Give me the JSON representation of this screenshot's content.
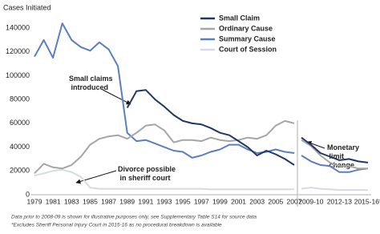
{
  "chart_data": [
    {
      "type": "line",
      "y_label": "Cases Initiated",
      "legend": "top-right",
      "annotations": [
        "Small claims introduced",
        "Divorce possible in sheriff court"
      ],
      "categories": [
        "1979",
        null,
        "1981",
        null,
        "1983",
        null,
        "1985",
        null,
        "1987",
        null,
        "1989",
        null,
        "1991",
        null,
        "1993",
        null,
        "1995",
        null,
        "1997",
        null,
        "1999",
        null,
        "2001",
        null,
        "2003",
        null,
        "2005",
        null,
        "2007"
      ],
      "ylim": [
        0,
        150000
      ],
      "yticks": [
        0,
        20000,
        40000,
        60000,
        80000,
        100000,
        120000,
        140000
      ],
      "series": [
        {
          "name": "Small Claim",
          "color": "#1f3864",
          "values": [
            null,
            null,
            null,
            null,
            null,
            null,
            null,
            null,
            null,
            null,
            73000,
            87000,
            88000,
            80000,
            74000,
            67000,
            62000,
            60000,
            59000,
            56000,
            52000,
            50000,
            45000,
            40000,
            33000,
            37000,
            34000,
            30000,
            25000
          ]
        },
        {
          "name": "Ordinary Cause",
          "color": "#a6a6a6",
          "values": [
            18000,
            26000,
            23000,
            22000,
            25000,
            32000,
            42000,
            47000,
            49000,
            50000,
            47000,
            52000,
            58000,
            59000,
            54000,
            44000,
            46000,
            46000,
            45000,
            48000,
            46000,
            45000,
            46000,
            48000,
            47000,
            50000,
            58000,
            62000,
            60000
          ]
        },
        {
          "name": "Summary Cause",
          "color": "#5b7fbd",
          "values": [
            116000,
            130000,
            115000,
            144000,
            130000,
            124000,
            121000,
            128000,
            122000,
            108000,
            52000,
            45000,
            46000,
            43000,
            40000,
            37000,
            36000,
            31000,
            33000,
            36000,
            38000,
            42000,
            42000,
            38000,
            35000,
            36000,
            38000,
            36000,
            35000
          ]
        },
        {
          "name": "Court of Session",
          "color": "#d5dbe6",
          "values": [
            16000,
            18000,
            20000,
            21000,
            19000,
            15000,
            6000,
            5000,
            5000,
            5000,
            5000,
            5000,
            5000,
            5000,
            5000,
            5000,
            5000,
            5000,
            5000,
            4500,
            4500,
            4500,
            4500,
            4500,
            4500,
            4500,
            4500,
            4500,
            4500
          ]
        }
      ]
    },
    {
      "type": "line",
      "annotations": [
        "Monetary limit change"
      ],
      "categories": [
        null,
        "2009-10",
        null,
        null,
        "2012-13",
        null,
        null,
        "2015-16*"
      ],
      "ylim": [
        0,
        150000
      ],
      "series": [
        {
          "name": "Small Claim",
          "color": "#1f3864",
          "values": [
            48000,
            42000,
            35000,
            32000,
            29000,
            30000,
            28000,
            27000
          ]
        },
        {
          "name": "Ordinary Cause",
          "color": "#a6a6a6",
          "values": [
            46000,
            41000,
            33000,
            27000,
            24000,
            24000,
            22000,
            22000
          ]
        },
        {
          "name": "Summary Cause",
          "color": "#5b7fbd",
          "values": [
            33000,
            28000,
            25000,
            24000,
            19000,
            19000,
            21000,
            22000
          ]
        },
        {
          "name": "Court of Session",
          "color": "#d5dbe6",
          "values": [
            5000,
            6000,
            5000,
            4500,
            4000,
            4000,
            4000,
            4000
          ]
        }
      ]
    }
  ],
  "notes": [
    "Data prior to 2008-09 is shown for illustrative purposes only, see Supplementary Table S14 for source data",
    "*Excludes Sheriff Personal Injury Court in 2015-16 as no procedural breakdown is available"
  ]
}
